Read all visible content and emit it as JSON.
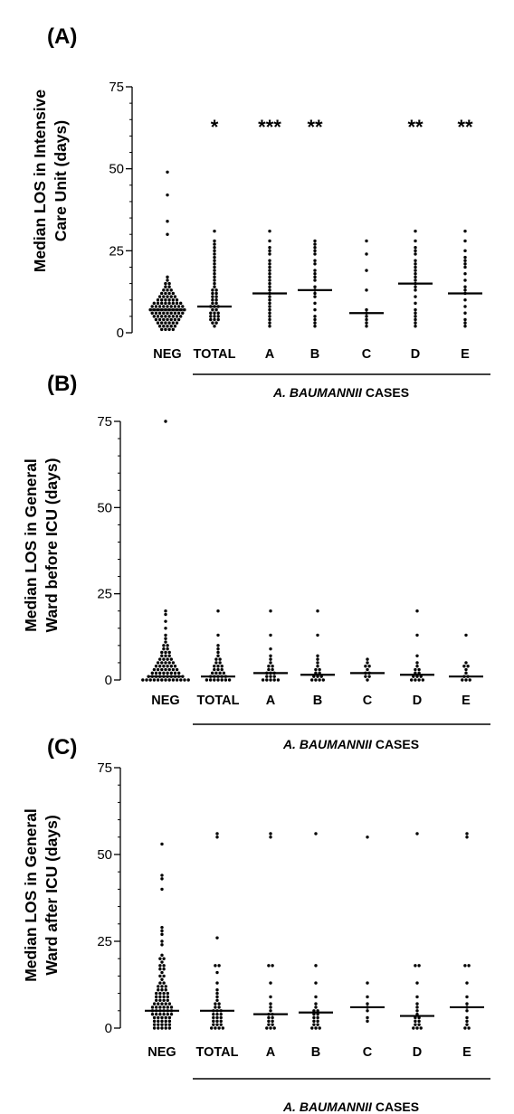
{
  "chart_data": [
    {
      "type": "scatter",
      "panel_label": "(A)",
      "ylabel_line1": "Median LOS in Intensive",
      "ylabel_line2": "Care Unit (days)",
      "ylim": [
        0,
        75
      ],
      "yticks": [
        "0",
        "25",
        "50",
        "75"
      ],
      "categories": [
        "NEG",
        "TOTAL",
        "A",
        "B",
        "C",
        "D",
        "E"
      ],
      "group_label_italic": "A. BAUMANNII",
      "group_label_rest": " CASES",
      "significance": [
        "",
        "*",
        "***",
        "**",
        "",
        "**",
        "**"
      ],
      "medians": [
        7,
        8,
        12,
        13,
        6,
        15,
        12
      ],
      "points": [
        [
          49,
          42,
          34,
          30,
          17,
          16,
          15,
          15,
          14,
          14,
          13,
          13,
          13,
          12,
          12,
          12,
          12,
          11,
          11,
          11,
          11,
          11,
          10,
          10,
          10,
          10,
          10,
          10,
          9,
          9,
          9,
          9,
          9,
          9,
          9,
          9,
          8,
          8,
          8,
          8,
          8,
          8,
          8,
          8,
          8,
          7,
          7,
          7,
          7,
          7,
          7,
          7,
          7,
          7,
          7,
          6,
          6,
          6,
          6,
          6,
          6,
          6,
          6,
          6,
          5,
          5,
          5,
          5,
          5,
          5,
          5,
          5,
          4,
          4,
          4,
          4,
          4,
          4,
          4,
          3,
          3,
          3,
          3,
          3,
          3,
          2,
          2,
          2,
          2,
          2,
          1,
          1,
          1,
          1
        ],
        [
          31,
          28,
          27,
          26,
          25,
          24,
          23,
          22,
          21,
          20,
          19,
          18,
          17,
          16,
          15,
          14,
          13,
          13,
          12,
          12,
          11,
          11,
          10,
          10,
          9,
          9,
          8,
          8,
          8,
          7,
          7,
          6,
          6,
          6,
          5,
          5,
          5,
          4,
          4,
          4,
          3,
          3,
          2
        ],
        [
          31,
          28,
          26,
          25,
          24,
          22,
          21,
          20,
          19,
          18,
          17,
          16,
          15,
          14,
          13,
          12,
          11,
          10,
          9,
          8,
          7,
          6,
          5,
          4,
          3,
          2
        ],
        [
          28,
          27,
          26,
          25,
          24,
          22,
          21,
          19,
          18,
          17,
          16,
          14,
          13,
          12,
          11,
          9,
          7,
          5,
          4,
          3,
          2
        ],
        [
          28,
          24,
          19,
          13,
          7,
          6,
          5,
          4,
          3,
          2
        ],
        [
          31,
          28,
          26,
          25,
          24,
          22,
          21,
          20,
          19,
          18,
          17,
          16,
          15,
          14,
          13,
          11,
          9,
          7,
          6,
          5,
          4,
          3,
          2
        ],
        [
          31,
          28,
          25,
          23,
          22,
          21,
          20,
          18,
          16,
          14,
          13,
          12,
          10,
          8,
          6,
          4,
          3,
          2
        ]
      ]
    },
    {
      "type": "scatter",
      "panel_label": "(B)",
      "ylabel_line1": "Median LOS in General",
      "ylabel_line2": "Ward before ICU (days)",
      "ylim": [
        0,
        75
      ],
      "yticks": [
        "0",
        "25",
        "50",
        "75"
      ],
      "categories": [
        "NEG",
        "TOTAL",
        "A",
        "B",
        "C",
        "D",
        "E"
      ],
      "group_label_italic": "A. BAUMANNII",
      "group_label_rest": " CASES",
      "significance": [
        "",
        "",
        "",
        "",
        "",
        "",
        ""
      ],
      "medians": [
        1,
        1,
        2,
        1.5,
        2,
        1.5,
        1
      ],
      "points": [
        [
          75,
          20,
          19,
          17,
          15,
          13,
          12,
          11,
          10,
          10,
          9,
          9,
          8,
          8,
          8,
          7,
          7,
          7,
          6,
          6,
          6,
          6,
          5,
          5,
          5,
          5,
          5,
          4,
          4,
          4,
          4,
          4,
          4,
          3,
          3,
          3,
          3,
          3,
          3,
          3,
          2,
          2,
          2,
          2,
          2,
          2,
          2,
          2,
          1,
          1,
          1,
          1,
          1,
          1,
          1,
          1,
          1,
          1,
          0,
          0,
          0,
          0,
          0,
          0,
          0,
          0,
          0,
          0,
          0,
          0,
          0
        ],
        [
          20,
          13,
          10,
          9,
          8,
          7,
          6,
          6,
          5,
          5,
          4,
          4,
          4,
          3,
          3,
          3,
          2,
          2,
          2,
          2,
          1,
          1,
          1,
          1,
          1,
          0,
          0,
          0,
          0,
          0,
          0,
          0
        ],
        [
          20,
          13,
          9,
          7,
          6,
          5,
          4,
          4,
          3,
          3,
          2,
          2,
          2,
          1,
          1,
          1,
          0,
          0,
          0,
          0,
          0
        ],
        [
          20,
          13,
          7,
          6,
          5,
          4,
          3,
          3,
          2,
          2,
          1,
          1,
          1,
          0,
          0,
          0,
          0
        ],
        [
          6,
          5,
          4,
          4,
          3,
          2,
          2,
          1,
          1,
          0
        ],
        [
          20,
          13,
          7,
          5,
          4,
          3,
          3,
          2,
          2,
          1,
          1,
          1,
          0,
          0,
          0,
          0
        ],
        [
          13,
          5,
          4,
          4,
          3,
          2,
          1,
          1,
          0,
          0,
          0
        ]
      ]
    },
    {
      "type": "scatter",
      "panel_label": "(C)",
      "ylabel_line1": "Median LOS in General",
      "ylabel_line2": "Ward after ICU (days)",
      "ylim": [
        0,
        75
      ],
      "yticks": [
        "0",
        "25",
        "50",
        "75"
      ],
      "categories": [
        "NEG",
        "TOTAL",
        "A",
        "B",
        "C",
        "D",
        "E"
      ],
      "group_label_italic": "A. BAUMANNII",
      "group_label_rest": " CASES",
      "significance": [
        "",
        "",
        "",
        "",
        "",
        "",
        ""
      ],
      "medians": [
        5,
        5,
        4,
        4.5,
        6,
        3.5,
        6
      ],
      "points": [
        [
          53,
          44,
          43,
          40,
          29,
          28,
          27,
          25,
          24,
          21,
          20,
          20,
          19,
          18,
          18,
          17,
          17,
          16,
          15,
          15,
          14,
          13,
          13,
          12,
          12,
          12,
          11,
          11,
          11,
          10,
          10,
          10,
          10,
          9,
          9,
          9,
          9,
          8,
          8,
          8,
          8,
          7,
          7,
          7,
          7,
          7,
          6,
          6,
          6,
          6,
          6,
          6,
          5,
          5,
          5,
          5,
          5,
          5,
          4,
          4,
          4,
          4,
          4,
          4,
          3,
          3,
          3,
          3,
          3,
          2,
          2,
          2,
          2,
          2,
          1,
          1,
          1,
          1,
          1,
          0,
          0,
          0,
          0,
          0
        ],
        [
          56,
          55,
          26,
          18,
          18,
          16,
          13,
          11,
          10,
          9,
          8,
          7,
          7,
          6,
          6,
          5,
          5,
          5,
          4,
          4,
          4,
          3,
          3,
          3,
          2,
          2,
          2,
          1,
          1,
          1,
          0,
          0,
          0,
          0
        ],
        [
          56,
          55,
          18,
          18,
          13,
          9,
          7,
          6,
          5,
          4,
          4,
          3,
          3,
          2,
          2,
          1,
          1,
          0,
          0,
          0
        ],
        [
          56,
          18,
          13,
          9,
          7,
          6,
          5,
          5,
          4,
          4,
          3,
          3,
          2,
          2,
          1,
          1,
          0,
          0,
          0
        ],
        [
          55,
          13,
          9,
          7,
          6,
          5,
          3,
          2
        ],
        [
          56,
          18,
          18,
          13,
          9,
          7,
          6,
          5,
          4,
          3,
          3,
          2,
          2,
          1,
          1,
          0,
          0,
          0
        ],
        [
          56,
          55,
          18,
          18,
          13,
          9,
          7,
          6,
          5,
          3,
          2,
          1,
          0,
          0
        ]
      ]
    }
  ]
}
